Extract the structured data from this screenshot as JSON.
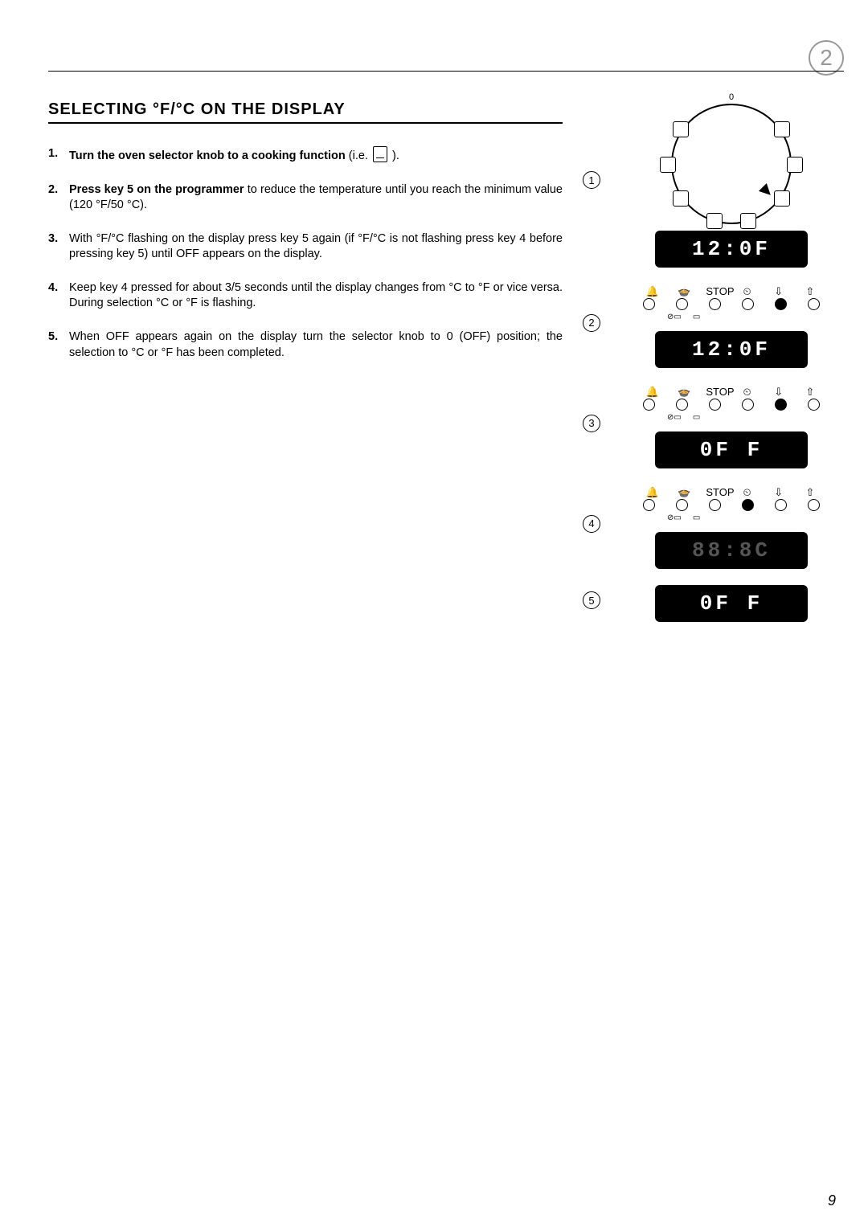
{
  "chapter_badge": "2",
  "title": "SELECTING °F/°C ON THE DISPLAY",
  "steps": [
    {
      "num": "1.",
      "bold": "Turn the oven selector knob to a cooking function",
      "rest": " (i.e. ",
      "icon": true,
      "tail": " )."
    },
    {
      "num": "2.",
      "bold": "Press key 5 on the programmer",
      "rest": " to reduce the temperature until you reach the minimum value (120 °F/50 °C)."
    },
    {
      "num": "3.",
      "rest": "With °F/°C flashing on the display press key 5 again (if °F/°C is not flashing press key 4 before pressing key 5) until OFF appears on the display."
    },
    {
      "num": "4.",
      "rest": "Keep key 4 pressed for about 3/5 seconds until the display changes from °C to °F or vice versa. During selection °C or °F is flashing."
    },
    {
      "num": "5.",
      "rest": "When OFF appears again on the display turn the selector knob to ",
      "zero": "0",
      "tail": " (OFF) position; the selection to °C or °F has been completed."
    }
  ],
  "dial": {
    "top_label": "0"
  },
  "panels": [
    {
      "circle": "1",
      "type": "dial"
    },
    {
      "circle": "2",
      "lcd": "12:0F",
      "pre_lcd": "12:0F",
      "filled_btn": 4
    },
    {
      "circle": "3",
      "lcd": "0F F ",
      "filled_btn": 4
    },
    {
      "circle": "4",
      "lcd": "88:8C",
      "dim": true,
      "filled_btn": 3
    },
    {
      "circle": "5",
      "lcd": "0F F "
    }
  ],
  "bp_icons": [
    "🔔",
    "🍲",
    "STOP",
    "⏲",
    "⇩",
    "⇧"
  ],
  "bp_sub": [
    "⊘▭",
    "▭"
  ],
  "page_number": "9"
}
